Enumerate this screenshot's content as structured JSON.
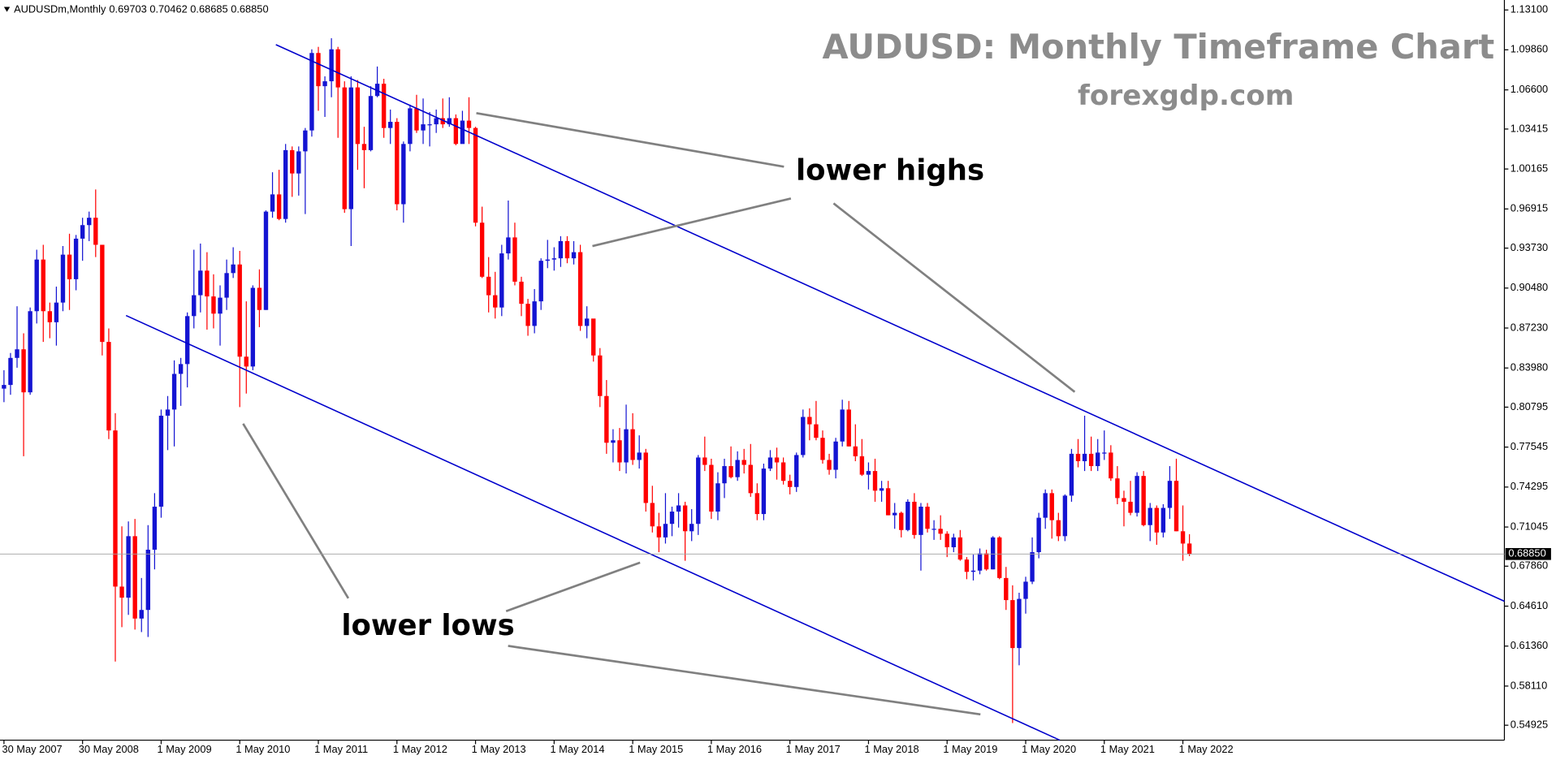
{
  "chart_data": {
    "type": "candlestick",
    "symbol": "AUDUSDm,Monthly",
    "ohlc_text": "0.69703 0.70462 0.68685 0.68850",
    "title": "AUDUSD: Monthly Timeframe Chart",
    "subtitle": "forexgdp.com",
    "annotations": [
      "lower highs",
      "lower lows"
    ],
    "up_color": "#1414d2",
    "down_color": "#ff0000",
    "ylim": [
      0.5371,
      1.1391
    ],
    "yticks": [
      {
        "value": 1.131,
        "label": "1.13100"
      },
      {
        "value": 1.0986,
        "label": "1.09860"
      },
      {
        "value": 1.066,
        "label": "1.06600"
      },
      {
        "value": 1.03415,
        "label": "1.03415"
      },
      {
        "value": 1.00165,
        "label": "1.00165"
      },
      {
        "value": 0.96915,
        "label": "0.96915"
      },
      {
        "value": 0.9373,
        "label": "0.93730"
      },
      {
        "value": 0.9048,
        "label": "0.90480"
      },
      {
        "value": 0.8723,
        "label": "0.87230"
      },
      {
        "value": 0.8398,
        "label": "0.83980"
      },
      {
        "value": 0.80795,
        "label": "0.80795"
      },
      {
        "value": 0.77545,
        "label": "0.77545"
      },
      {
        "value": 0.74295,
        "label": "0.74295"
      },
      {
        "value": 0.71045,
        "label": "0.71045"
      },
      {
        "value": 0.6786,
        "label": "0.67860"
      },
      {
        "value": 0.6461,
        "label": "0.64610"
      },
      {
        "value": 0.6136,
        "label": "0.61360"
      },
      {
        "value": 0.5811,
        "label": "0.58110"
      },
      {
        "value": 0.54925,
        "label": "0.54925"
      }
    ],
    "current_price": {
      "value": 0.6885,
      "label": "0.68850"
    },
    "categories": [
      "30 May 2007",
      null,
      null,
      null,
      null,
      null,
      null,
      null,
      null,
      null,
      null,
      null,
      "30 May 2008",
      null,
      null,
      null,
      null,
      null,
      null,
      null,
      null,
      null,
      null,
      null,
      "1 May 2009",
      null,
      null,
      null,
      null,
      null,
      null,
      null,
      null,
      null,
      null,
      null,
      "1 May 2010",
      null,
      null,
      null,
      null,
      null,
      null,
      null,
      null,
      null,
      null,
      null,
      "1 May 2011",
      null,
      null,
      null,
      null,
      null,
      null,
      null,
      null,
      null,
      null,
      null,
      "1 May 2012",
      null,
      null,
      null,
      null,
      null,
      null,
      null,
      null,
      null,
      null,
      null,
      "1 May 2013",
      null,
      null,
      null,
      null,
      null,
      null,
      null,
      null,
      null,
      null,
      null,
      "1 May 2014",
      null,
      null,
      null,
      null,
      null,
      null,
      null,
      null,
      null,
      null,
      null,
      "1 May 2015",
      null,
      null,
      null,
      null,
      null,
      null,
      null,
      null,
      null,
      null,
      null,
      "1 May 2016",
      null,
      null,
      null,
      null,
      null,
      null,
      null,
      null,
      null,
      null,
      null,
      "1 May 2017",
      null,
      null,
      null,
      null,
      null,
      null,
      null,
      null,
      null,
      null,
      null,
      "1 May 2018",
      null,
      null,
      null,
      null,
      null,
      null,
      null,
      null,
      null,
      null,
      null,
      "1 May 2019",
      null,
      null,
      null,
      null,
      null,
      null,
      null,
      null,
      null,
      null,
      null,
      "1 May 2020",
      null,
      null,
      null,
      null,
      null,
      null,
      null,
      null,
      null,
      null,
      null,
      "1 May 2021",
      null,
      null,
      null,
      null,
      null,
      null,
      null,
      null,
      null,
      null,
      null,
      "1 May 2022",
      null
    ],
    "open": [
      0.823,
      0.826,
      0.848,
      0.855,
      0.82,
      0.886,
      0.928,
      0.886,
      0.877,
      0.893,
      0.932,
      0.912,
      0.945,
      0.956,
      0.962,
      0.94,
      0.861,
      0.789,
      0.662,
      0.653,
      0.703,
      0.636,
      0.643,
      0.692,
      0.727,
      0.801,
      0.806,
      0.835,
      0.843,
      0.882,
      0.899,
      0.919,
      0.898,
      0.884,
      0.897,
      0.917,
      0.924,
      0.849,
      0.841,
      0.905,
      0.887,
      0.967,
      0.981,
      0.961,
      1.017,
      0.998,
      1.016,
      1.033,
      1.096,
      1.069,
      1.073,
      1.099,
      1.068,
      0.969,
      1.068,
      1.022,
      1.017,
      1.061,
      1.071,
      1.035,
      1.04,
      0.973,
      1.022,
      1.051,
      1.033,
      1.038,
      1.038,
      1.043,
      1.038,
      1.043,
      1.022,
      1.041,
      1.035,
      0.958,
      0.914,
      0.899,
      0.889,
      0.933,
      0.946,
      0.91,
      0.892,
      0.874,
      0.894,
      0.927,
      0.928,
      0.929,
      0.943,
      0.929,
      0.934,
      0.874,
      0.88,
      0.85,
      0.817,
      0.779,
      0.781,
      0.763,
      0.79,
      0.765,
      0.771,
      0.73,
      0.711,
      0.702,
      0.713,
      0.723,
      0.728,
      0.707,
      0.713,
      0.767,
      0.761,
      0.723,
      0.746,
      0.76,
      0.751,
      0.765,
      0.761,
      0.738,
      0.721,
      0.758,
      0.767,
      0.763,
      0.748,
      0.743,
      0.769,
      0.8,
      0.794,
      0.783,
      0.765,
      0.757,
      0.78,
      0.806,
      0.776,
      0.768,
      0.753,
      0.756,
      0.74,
      0.742,
      0.72,
      0.722,
      0.708,
      0.731,
      0.704,
      0.727,
      0.709,
      0.709,
      0.705,
      0.694,
      0.702,
      0.684,
      0.674,
      0.675,
      0.689,
      0.676,
      0.702,
      0.669,
      0.651,
      0.612,
      0.652,
      0.666,
      0.69,
      0.718,
      0.738,
      0.716,
      0.703,
      0.736,
      0.77,
      0.764,
      0.77,
      0.76,
      0.771,
      0.771,
      0.75,
      0.734,
      0.731,
      0.722,
      0.752,
      0.712,
      0.726,
      0.706,
      0.726,
      0.748,
      0.707,
      0.69703
    ],
    "high": [
      0.838,
      0.852,
      0.89,
      0.868,
      0.889,
      0.936,
      0.94,
      0.893,
      0.906,
      0.939,
      0.949,
      0.948,
      0.962,
      0.967,
      0.985,
      0.94,
      0.872,
      0.803,
      0.711,
      0.715,
      0.717,
      0.669,
      0.712,
      0.738,
      0.806,
      0.817,
      0.846,
      0.848,
      0.885,
      0.936,
      0.941,
      0.934,
      0.916,
      0.907,
      0.928,
      0.938,
      0.935,
      0.894,
      0.907,
      0.92,
      0.968,
      0.999,
      1.001,
      1.022,
      1.02,
      1.02,
      1.035,
      1.099,
      1.101,
      1.077,
      1.108,
      1.101,
      1.073,
      1.077,
      1.074,
      1.036,
      1.069,
      1.085,
      1.075,
      1.05,
      1.043,
      1.024,
      1.054,
      1.062,
      1.059,
      1.048,
      1.05,
      1.059,
      1.06,
      1.046,
      1.049,
      1.06,
      1.036,
      0.971,
      0.93,
      0.918,
      0.94,
      0.976,
      0.958,
      0.914,
      0.896,
      0.904,
      0.929,
      0.944,
      0.938,
      0.947,
      0.947,
      0.943,
      0.94,
      0.89,
      0.879,
      0.856,
      0.83,
      0.79,
      0.791,
      0.81,
      0.803,
      0.785,
      0.774,
      0.744,
      0.722,
      0.738,
      0.727,
      0.738,
      0.731,
      0.725,
      0.769,
      0.784,
      0.766,
      0.755,
      0.766,
      0.776,
      0.772,
      0.774,
      0.778,
      0.746,
      0.762,
      0.773,
      0.775,
      0.767,
      0.753,
      0.771,
      0.806,
      0.807,
      0.813,
      0.789,
      0.77,
      0.783,
      0.814,
      0.813,
      0.794,
      0.782,
      0.763,
      0.766,
      0.748,
      0.748,
      0.73,
      0.723,
      0.733,
      0.738,
      0.73,
      0.73,
      0.716,
      0.72,
      0.707,
      0.705,
      0.708,
      0.686,
      0.688,
      0.693,
      0.692,
      0.703,
      0.703,
      0.678,
      0.663,
      0.657,
      0.67,
      0.702,
      0.722,
      0.741,
      0.741,
      0.722,
      0.737,
      0.774,
      0.782,
      0.801,
      0.784,
      0.782,
      0.789,
      0.777,
      0.76,
      0.74,
      0.748,
      0.755,
      0.756,
      0.73,
      0.728,
      0.729,
      0.76,
      0.766,
      0.728,
      0.70462
    ],
    "low": [
      0.812,
      0.818,
      0.84,
      0.768,
      0.818,
      0.876,
      0.861,
      0.864,
      0.858,
      0.886,
      0.887,
      0.903,
      0.927,
      0.943,
      0.93,
      0.85,
      0.782,
      0.601,
      0.629,
      0.639,
      0.627,
      0.625,
      0.621,
      0.676,
      0.718,
      0.773,
      0.776,
      0.809,
      0.824,
      0.872,
      0.885,
      0.871,
      0.872,
      0.858,
      0.887,
      0.913,
      0.808,
      0.819,
      0.838,
      0.873,
      0.887,
      0.962,
      0.96,
      0.958,
      0.979,
      0.98,
      0.965,
      1.028,
      1.049,
      1.044,
      1.06,
      1.027,
      0.966,
      0.939,
      1.001,
      0.986,
      1.016,
      1.06,
      1.027,
      1.022,
      0.968,
      0.958,
      1.016,
      1.031,
      1.022,
      1.02,
      1.031,
      1.035,
      1.036,
      1.021,
      1.025,
      1.022,
      0.955,
      0.913,
      0.885,
      0.88,
      0.882,
      0.928,
      0.907,
      0.882,
      0.866,
      0.868,
      0.887,
      0.921,
      0.919,
      0.922,
      0.925,
      0.924,
      0.87,
      0.864,
      0.845,
      0.808,
      0.77,
      0.763,
      0.756,
      0.754,
      0.761,
      0.758,
      0.723,
      0.706,
      0.69,
      0.697,
      0.703,
      0.71,
      0.683,
      0.699,
      0.704,
      0.756,
      0.717,
      0.716,
      0.734,
      0.75,
      0.748,
      0.754,
      0.735,
      0.716,
      0.716,
      0.756,
      0.749,
      0.745,
      0.737,
      0.739,
      0.767,
      0.781,
      0.781,
      0.762,
      0.753,
      0.75,
      0.776,
      0.776,
      0.764,
      0.752,
      0.741,
      0.731,
      0.731,
      0.72,
      0.709,
      0.702,
      0.707,
      0.701,
      0.675,
      0.706,
      0.7,
      0.7,
      0.686,
      0.69,
      0.683,
      0.668,
      0.667,
      0.672,
      0.675,
      0.676,
      0.668,
      0.643,
      0.551,
      0.598,
      0.64,
      0.664,
      0.685,
      0.709,
      0.701,
      0.699,
      0.699,
      0.731,
      0.759,
      0.756,
      0.756,
      0.756,
      0.765,
      0.748,
      0.729,
      0.711,
      0.72,
      0.719,
      0.711,
      0.699,
      0.696,
      0.702,
      0.717,
      0.707,
      0.683,
      0.68685
    ],
    "close": [
      0.826,
      0.848,
      0.855,
      0.82,
      0.886,
      0.928,
      0.886,
      0.877,
      0.893,
      0.932,
      0.912,
      0.945,
      0.956,
      0.962,
      0.94,
      0.861,
      0.789,
      0.662,
      0.653,
      0.703,
      0.636,
      0.643,
      0.692,
      0.727,
      0.801,
      0.806,
      0.835,
      0.843,
      0.882,
      0.899,
      0.919,
      0.898,
      0.884,
      0.897,
      0.917,
      0.924,
      0.849,
      0.841,
      0.905,
      0.887,
      0.967,
      0.981,
      0.961,
      1.017,
      0.998,
      1.016,
      1.033,
      1.096,
      1.069,
      1.073,
      1.099,
      1.068,
      0.969,
      1.068,
      1.022,
      1.017,
      1.061,
      1.071,
      1.035,
      1.04,
      0.973,
      1.022,
      1.051,
      1.033,
      1.038,
      1.038,
      1.043,
      1.038,
      1.043,
      1.022,
      1.041,
      1.035,
      0.958,
      0.914,
      0.899,
      0.889,
      0.933,
      0.946,
      0.91,
      0.892,
      0.874,
      0.894,
      0.927,
      0.928,
      0.929,
      0.943,
      0.929,
      0.934,
      0.874,
      0.88,
      0.85,
      0.817,
      0.779,
      0.781,
      0.763,
      0.79,
      0.765,
      0.771,
      0.73,
      0.711,
      0.702,
      0.713,
      0.723,
      0.728,
      0.707,
      0.713,
      0.767,
      0.761,
      0.723,
      0.746,
      0.76,
      0.751,
      0.765,
      0.761,
      0.738,
      0.721,
      0.758,
      0.767,
      0.763,
      0.748,
      0.743,
      0.769,
      0.8,
      0.794,
      0.783,
      0.765,
      0.757,
      0.78,
      0.806,
      0.776,
      0.768,
      0.753,
      0.756,
      0.74,
      0.742,
      0.72,
      0.722,
      0.708,
      0.731,
      0.704,
      0.727,
      0.709,
      0.709,
      0.705,
      0.694,
      0.702,
      0.684,
      0.674,
      0.675,
      0.689,
      0.676,
      0.702,
      0.669,
      0.651,
      0.612,
      0.652,
      0.666,
      0.69,
      0.718,
      0.738,
      0.716,
      0.703,
      0.736,
      0.77,
      0.764,
      0.77,
      0.76,
      0.771,
      0.771,
      0.75,
      0.734,
      0.731,
      0.722,
      0.752,
      0.712,
      0.726,
      0.706,
      0.726,
      0.748,
      0.707,
      0.697,
      0.6885
    ]
  }
}
